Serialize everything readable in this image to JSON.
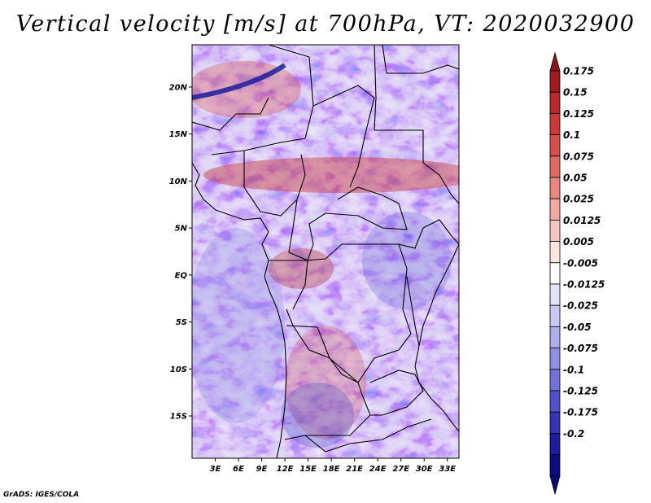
{
  "title": "Vertical velocity [m/s] at 700hPa, VT: 2020032900",
  "credit": "GrADS: IGES/COLA",
  "map": {
    "lat_labels": [
      "20N",
      "15N",
      "10N",
      "5N",
      "EQ",
      "5S",
      "10S",
      "15S"
    ],
    "lat_values": [
      20,
      15,
      10,
      5,
      0,
      -5,
      -10,
      -15
    ],
    "lon_labels": [
      "3E",
      "6E",
      "9E",
      "12E",
      "15E",
      "18E",
      "21E",
      "24E",
      "27E",
      "30E",
      "33E"
    ],
    "lon_values": [
      3,
      6,
      9,
      12,
      15,
      18,
      21,
      24,
      27,
      30,
      33
    ],
    "lon_range": [
      0,
      34.5
    ],
    "lat_range": [
      -19.5,
      24.5
    ]
  },
  "colorbar": {
    "labels": [
      "0.175",
      "0.15",
      "0.125",
      "0.1",
      "0.075",
      "0.05",
      "0.025",
      "0.0125",
      "0.005",
      "-0.005",
      "-0.0125",
      "-0.025",
      "-0.05",
      "-0.075",
      "-0.1",
      "-0.125",
      "-0.175",
      "-0.2"
    ],
    "colors": [
      "#a01c22",
      "#b82a2c",
      "#c93a38",
      "#d6504a",
      "#df6a62",
      "#e78880",
      "#efa8a2",
      "#f5c6c2",
      "#fbe4e2",
      "#ffffff",
      "#e2e2f8",
      "#c8c8f2",
      "#aeaeec",
      "#9090e2",
      "#7272d6",
      "#5252c8",
      "#3434b4",
      "#1c1c9c",
      "#0c0c80"
    ],
    "upper_arrow_color": "#8e1418",
    "lower_arrow_color": "#0a0a78"
  },
  "colors": {
    "field_base": "#d8d8f4",
    "positive": "#e06060",
    "negative": "#5a5ad8",
    "boundary": "#000000"
  }
}
